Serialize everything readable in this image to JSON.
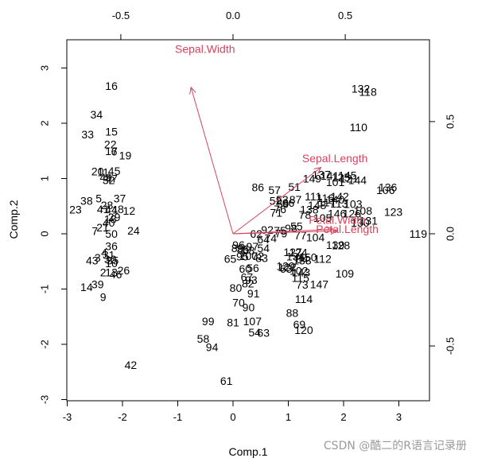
{
  "chart_data": {
    "type": "biplot",
    "xlabel": "Comp.1",
    "ylabel": "Comp.2",
    "xlim": [
      -3,
      3.6
    ],
    "ylim": [
      -3,
      3.5
    ],
    "x_ticks": [
      -3,
      -2,
      -1,
      0,
      1,
      2,
      3
    ],
    "y_ticks": [
      -3,
      -2,
      -1,
      0,
      1,
      2,
      3
    ],
    "x_tick_labels": [
      "-3",
      "-2",
      "-1",
      "0",
      "1",
      "2",
      "3"
    ],
    "y_tick_labels": [
      "-3",
      "-2",
      "-1",
      "0",
      "1",
      "2",
      "3"
    ],
    "top_ticks": [
      -0.5,
      0,
      0.5
    ],
    "top_tick_labels": [
      "-0.5",
      "0.0",
      "0.5"
    ],
    "right_ticks": [
      -0.5,
      0,
      0.5
    ],
    "right_tick_labels": [
      "-0.5",
      "0.0",
      "0.5"
    ],
    "loading_scale": 4.06,
    "observations": [
      {
        "label": "16",
        "x": -2.2,
        "y": 2.66
      },
      {
        "label": "34",
        "x": -2.47,
        "y": 2.14
      },
      {
        "label": "15",
        "x": -2.2,
        "y": 1.83
      },
      {
        "label": "33",
        "x": -2.63,
        "y": 1.78
      },
      {
        "label": "22",
        "x": -2.22,
        "y": 1.6
      },
      {
        "label": "17",
        "x": -2.2,
        "y": 1.48
      },
      {
        "label": "19",
        "x": -1.95,
        "y": 1.4
      },
      {
        "label": "6",
        "x": -2.15,
        "y": 1.47
      },
      {
        "label": "20",
        "x": -2.45,
        "y": 1.11
      },
      {
        "label": "45",
        "x": -2.15,
        "y": 1.12
      },
      {
        "label": "11",
        "x": -2.35,
        "y": 1.1
      },
      {
        "label": "49",
        "x": -2.3,
        "y": 1.0
      },
      {
        "label": "32",
        "x": -2.25,
        "y": 0.95
      },
      {
        "label": "47",
        "x": -2.2,
        "y": 0.98
      },
      {
        "label": "37",
        "x": -2.05,
        "y": 0.62
      },
      {
        "label": "38",
        "x": -2.65,
        "y": 0.58
      },
      {
        "label": "5",
        "x": -2.43,
        "y": 0.62
      },
      {
        "label": "28",
        "x": -2.28,
        "y": 0.5
      },
      {
        "label": "23",
        "x": -2.85,
        "y": 0.42
      },
      {
        "label": "41",
        "x": -2.35,
        "y": 0.43
      },
      {
        "label": "44",
        "x": -2.2,
        "y": 0.42
      },
      {
        "label": "8",
        "x": -2.03,
        "y": 0.43
      },
      {
        "label": "1",
        "x": -2.13,
        "y": 0.42
      },
      {
        "label": "12",
        "x": -1.88,
        "y": 0.4
      },
      {
        "label": "29",
        "x": -2.15,
        "y": 0.28
      },
      {
        "label": "18",
        "x": -2.22,
        "y": 0.25
      },
      {
        "label": "40",
        "x": -2.25,
        "y": 0.18
      },
      {
        "label": "21",
        "x": -2.36,
        "y": 0.1
      },
      {
        "label": "7",
        "x": -2.5,
        "y": 0.03
      },
      {
        "label": "24",
        "x": -1.8,
        "y": 0.04
      },
      {
        "label": "50",
        "x": -2.2,
        "y": -0.02
      },
      {
        "label": "36",
        "x": -2.2,
        "y": -0.24
      },
      {
        "label": "43",
        "x": -2.55,
        "y": -0.5
      },
      {
        "label": "4",
        "x": -2.33,
        "y": -0.36
      },
      {
        "label": "3",
        "x": -2.45,
        "y": -0.45
      },
      {
        "label": "31",
        "x": -2.25,
        "y": -0.4
      },
      {
        "label": "30",
        "x": -2.22,
        "y": -0.48
      },
      {
        "label": "35",
        "x": -2.18,
        "y": -0.5
      },
      {
        "label": "10",
        "x": -2.2,
        "y": -0.55
      },
      {
        "label": "26",
        "x": -1.98,
        "y": -0.68
      },
      {
        "label": "13",
        "x": -2.2,
        "y": -0.72
      },
      {
        "label": "46",
        "x": -2.12,
        "y": -0.75
      },
      {
        "label": "2",
        "x": -2.35,
        "y": -0.72
      },
      {
        "label": "39",
        "x": -2.45,
        "y": -0.93
      },
      {
        "label": "14",
        "x": -2.65,
        "y": -0.98
      },
      {
        "label": "9",
        "x": -2.35,
        "y": -1.16
      },
      {
        "label": "42",
        "x": -1.85,
        "y": -2.39
      },
      {
        "label": "132",
        "x": 2.31,
        "y": 2.61
      },
      {
        "label": "118",
        "x": 2.44,
        "y": 2.55
      },
      {
        "label": "110",
        "x": 2.27,
        "y": 1.91
      },
      {
        "label": "86",
        "x": 0.45,
        "y": 0.82
      },
      {
        "label": "57",
        "x": 0.75,
        "y": 0.77
      },
      {
        "label": "51",
        "x": 1.11,
        "y": 0.83
      },
      {
        "label": "149",
        "x": 1.43,
        "y": 0.98
      },
      {
        "label": "137",
        "x": 1.6,
        "y": 1.05
      },
      {
        "label": "141",
        "x": 1.75,
        "y": 1.03
      },
      {
        "label": "125",
        "x": 1.95,
        "y": 1.0
      },
      {
        "label": "145",
        "x": 2.07,
        "y": 1.04
      },
      {
        "label": "121",
        "x": 2.1,
        "y": 0.98
      },
      {
        "label": "144",
        "x": 2.25,
        "y": 0.95
      },
      {
        "label": "101",
        "x": 1.85,
        "y": 0.92
      },
      {
        "label": "53",
        "x": 0.89,
        "y": 0.6
      },
      {
        "label": "52",
        "x": 0.77,
        "y": 0.58
      },
      {
        "label": "111",
        "x": 1.45,
        "y": 0.66
      },
      {
        "label": "116",
        "x": 1.67,
        "y": 0.63
      },
      {
        "label": "142",
        "x": 1.93,
        "y": 0.66
      },
      {
        "label": "140",
        "x": 1.85,
        "y": 0.6
      },
      {
        "label": "103",
        "x": 2.17,
        "y": 0.52
      },
      {
        "label": "113",
        "x": 1.92,
        "y": 0.53
      },
      {
        "label": "117",
        "x": 1.7,
        "y": 0.55
      },
      {
        "label": "148",
        "x": 1.52,
        "y": 0.5
      },
      {
        "label": "136",
        "x": 2.8,
        "y": 0.82
      },
      {
        "label": "106",
        "x": 2.76,
        "y": 0.77
      },
      {
        "label": "66",
        "x": 1.0,
        "y": 0.54
      },
      {
        "label": "87",
        "x": 1.13,
        "y": 0.6
      },
      {
        "label": "59",
        "x": 0.9,
        "y": 0.52
      },
      {
        "label": "76",
        "x": 0.85,
        "y": 0.43
      },
      {
        "label": "71",
        "x": 0.78,
        "y": 0.36
      },
      {
        "label": "138",
        "x": 1.38,
        "y": 0.42
      },
      {
        "label": "108",
        "x": 2.35,
        "y": 0.4
      },
      {
        "label": "123",
        "x": 2.9,
        "y": 0.38
      },
      {
        "label": "126",
        "x": 2.15,
        "y": 0.35
      },
      {
        "label": "146",
        "x": 1.88,
        "y": 0.35
      },
      {
        "label": "78",
        "x": 1.3,
        "y": 0.33
      },
      {
        "label": "105",
        "x": 1.62,
        "y": 0.27
      },
      {
        "label": "131",
        "x": 2.45,
        "y": 0.22
      },
      {
        "label": "130",
        "x": 2.3,
        "y": 0.18
      },
      {
        "label": "119",
        "x": 3.35,
        "y": -0.02
      },
      {
        "label": "55",
        "x": 1.15,
        "y": 0.12
      },
      {
        "label": "92",
        "x": 0.62,
        "y": 0.05
      },
      {
        "label": "75",
        "x": 0.85,
        "y": 0.04
      },
      {
        "label": "98",
        "x": 1.05,
        "y": 0.08
      },
      {
        "label": "62",
        "x": 0.42,
        "y": -0.02
      },
      {
        "label": "79",
        "x": 0.87,
        "y": -0.01
      },
      {
        "label": "77",
        "x": 1.22,
        "y": -0.05
      },
      {
        "label": "104",
        "x": 1.49,
        "y": -0.08
      },
      {
        "label": "64",
        "x": 0.55,
        "y": -0.12
      },
      {
        "label": "74",
        "x": 0.68,
        "y": -0.1
      },
      {
        "label": "139",
        "x": 1.85,
        "y": -0.22
      },
      {
        "label": "128",
        "x": 1.95,
        "y": -0.23
      },
      {
        "label": "96",
        "x": 0.1,
        "y": -0.22
      },
      {
        "label": "89",
        "x": 0.08,
        "y": -0.28
      },
      {
        "label": "97",
        "x": 0.35,
        "y": -0.25
      },
      {
        "label": "54",
        "x": 0.55,
        "y": -0.28
      },
      {
        "label": "85",
        "x": 0.18,
        "y": -0.3
      },
      {
        "label": "68",
        "x": 0.28,
        "y": -0.32
      },
      {
        "label": "65",
        "x": -0.05,
        "y": -0.47
      },
      {
        "label": "95",
        "x": 0.17,
        "y": -0.43
      },
      {
        "label": "100",
        "x": 0.28,
        "y": -0.42
      },
      {
        "label": "72",
        "x": 0.45,
        "y": -0.42
      },
      {
        "label": "83",
        "x": 0.52,
        "y": -0.46
      },
      {
        "label": "124",
        "x": 1.18,
        "y": -0.36
      },
      {
        "label": "134",
        "x": 1.13,
        "y": -0.43
      },
      {
        "label": "127",
        "x": 1.08,
        "y": -0.35
      },
      {
        "label": "112",
        "x": 1.62,
        "y": -0.47
      },
      {
        "label": "84",
        "x": 1.25,
        "y": -0.48
      },
      {
        "label": "150",
        "x": 1.35,
        "y": -0.44
      },
      {
        "label": "133",
        "x": 1.25,
        "y": -0.5
      },
      {
        "label": "129",
        "x": 0.95,
        "y": -0.6
      },
      {
        "label": "63",
        "x": 0.96,
        "y": -0.65
      },
      {
        "label": "122",
        "x": 0.98,
        "y": -0.62
      },
      {
        "label": "102",
        "x": 1.19,
        "y": -0.69
      },
      {
        "label": "143",
        "x": 1.23,
        "y": -0.72
      },
      {
        "label": "115",
        "x": 1.22,
        "y": -0.82
      },
      {
        "label": "147",
        "x": 1.56,
        "y": -0.93
      },
      {
        "label": "109",
        "x": 2.02,
        "y": -0.74
      },
      {
        "label": "73",
        "x": 1.25,
        "y": -0.94
      },
      {
        "label": "56",
        "x": 0.36,
        "y": -0.64
      },
      {
        "label": "60",
        "x": 0.22,
        "y": -0.65
      },
      {
        "label": "67",
        "x": 0.25,
        "y": -0.8
      },
      {
        "label": "93",
        "x": 0.33,
        "y": -0.85
      },
      {
        "label": "82",
        "x": 0.27,
        "y": -0.92
      },
      {
        "label": "80",
        "x": 0.05,
        "y": -1.0
      },
      {
        "label": "91",
        "x": 0.37,
        "y": -1.1
      },
      {
        "label": "70",
        "x": 0.1,
        "y": -1.26
      },
      {
        "label": "114",
        "x": 1.28,
        "y": -1.2
      },
      {
        "label": "90",
        "x": 0.28,
        "y": -1.35
      },
      {
        "label": "88",
        "x": 1.07,
        "y": -1.45
      },
      {
        "label": "99",
        "x": -0.45,
        "y": -1.6
      },
      {
        "label": "81",
        "x": 0.0,
        "y": -1.62
      },
      {
        "label": "107",
        "x": 0.35,
        "y": -1.6
      },
      {
        "label": "69",
        "x": 1.2,
        "y": -1.66
      },
      {
        "label": "58",
        "x": -0.54,
        "y": -1.92
      },
      {
        "label": "54b",
        "display": "54",
        "x": 0.39,
        "y": -1.8
      },
      {
        "label": "63b",
        "display": "63",
        "x": 0.55,
        "y": -1.81
      },
      {
        "label": "120",
        "x": 1.28,
        "y": -1.76
      },
      {
        "label": "94",
        "x": -0.38,
        "y": -2.07
      },
      {
        "label": "61",
        "x": -0.12,
        "y": -2.68
      }
    ],
    "variables": [
      {
        "name": "Sepal.Width",
        "x": -0.76,
        "y": 2.65,
        "label_x": -1.05,
        "label_y": 3.33
      },
      {
        "name": "Sepal.Length",
        "x": 1.59,
        "y": 1.2,
        "label_x": 1.25,
        "label_y": 1.35
      },
      {
        "name": "Petal.Width",
        "x": 1.8,
        "y": 0.08,
        "label_x": 1.37,
        "label_y": 0.23
      },
      {
        "name": "Petal.Length",
        "x": 1.88,
        "y": 0.05,
        "label_x": 1.5,
        "label_y": 0.07
      }
    ]
  },
  "watermark": "CSDN @酷二的R语言记录册",
  "colors": {
    "vector": "#d4455e",
    "axis": "#000000"
  }
}
